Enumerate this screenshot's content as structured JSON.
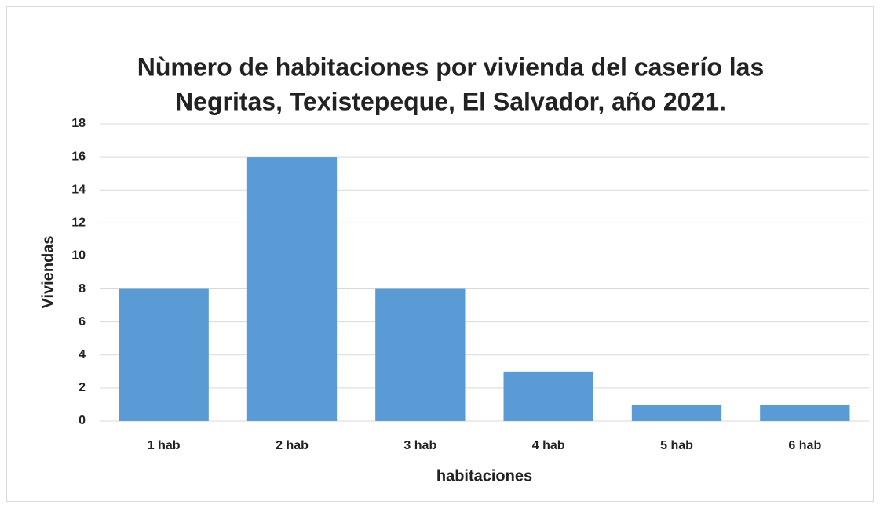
{
  "chart_data": {
    "type": "bar",
    "title": [
      "Nùmero de habitaciones por vivienda del caserío las",
      "Negritas, Texistepeque, El Salvador, año 2021."
    ],
    "categories": [
      "1 hab",
      "2 hab",
      "3 hab",
      "4 hab",
      "5 hab",
      "6 hab"
    ],
    "values": [
      8,
      16,
      8,
      3,
      1,
      1
    ],
    "color": "#5b9bd5",
    "xlabel": "habitaciones",
    "ylabel": "Viviendas",
    "ylim": [
      0,
      18
    ],
    "yticks": [
      0,
      2,
      4,
      6,
      8,
      10,
      12,
      14,
      16,
      18
    ],
    "grid": true
  }
}
